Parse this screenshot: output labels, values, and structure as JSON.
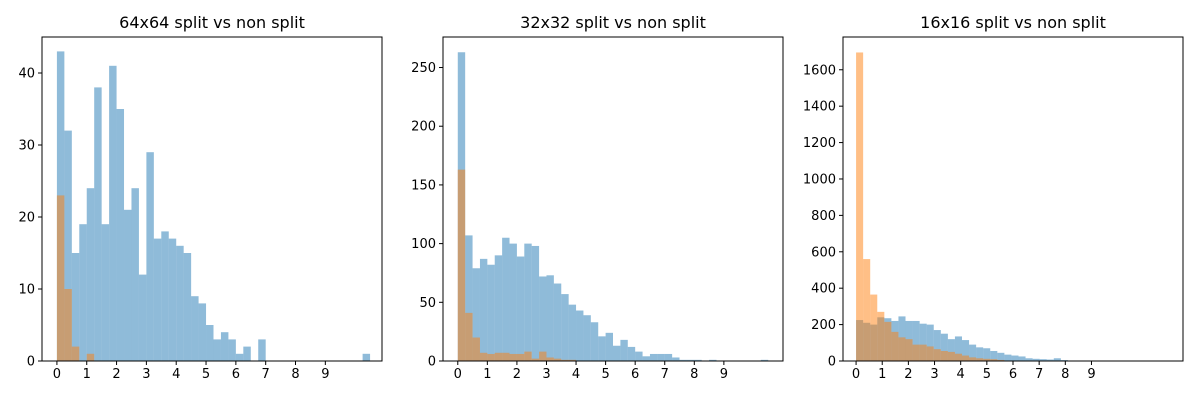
{
  "colors": {
    "series_blue": "#1f77b4",
    "series_orange": "#ff7f0e",
    "opacity": 0.5,
    "axis": "#000000",
    "background": "#ffffff"
  },
  "chart_data": [
    {
      "type": "bar",
      "title": "64x64 split vs non split",
      "xlabel": "",
      "ylabel": "",
      "xlim": [
        -0.5,
        10.9
      ],
      "ylim": [
        0,
        45
      ],
      "xticks": [
        "0",
        "1",
        "2",
        "3",
        "4",
        "5",
        "6",
        "7",
        "8",
        "9"
      ],
      "yticks": [
        "0",
        "10",
        "20",
        "30",
        "40"
      ],
      "grid": false,
      "legend": "none",
      "series": [
        {
          "bin_width": 0.25,
          "bins": [
            [
              0.0,
              43
            ],
            [
              0.25,
              32
            ],
            [
              0.5,
              15
            ],
            [
              0.75,
              19
            ],
            [
              1.0,
              24
            ],
            [
              1.25,
              38
            ],
            [
              1.5,
              19
            ],
            [
              1.75,
              41
            ],
            [
              2.0,
              35
            ],
            [
              2.25,
              21
            ],
            [
              2.5,
              24
            ],
            [
              2.75,
              12
            ],
            [
              3.0,
              29
            ],
            [
              3.25,
              17
            ],
            [
              3.5,
              18
            ],
            [
              3.75,
              17
            ],
            [
              4.0,
              16
            ],
            [
              4.25,
              15
            ],
            [
              4.5,
              9
            ],
            [
              4.75,
              8
            ],
            [
              5.0,
              5
            ],
            [
              5.25,
              3
            ],
            [
              5.5,
              4
            ],
            [
              5.75,
              3
            ],
            [
              6.0,
              1
            ],
            [
              6.25,
              2
            ],
            [
              6.75,
              3
            ],
            [
              10.25,
              1
            ]
          ]
        },
        {
          "bin_width": 0.25,
          "bins": [
            [
              0.0,
              23
            ],
            [
              0.25,
              10
            ],
            [
              0.5,
              2
            ],
            [
              1.0,
              1
            ]
          ]
        }
      ]
    },
    {
      "type": "bar",
      "title": "32x32 split vs non split",
      "xlabel": "",
      "ylabel": "",
      "xlim": [
        -0.5,
        11.0
      ],
      "ylim": [
        0,
        276
      ],
      "xticks": [
        "0",
        "1",
        "2",
        "3",
        "4",
        "5",
        "6",
        "7",
        "8",
        "9"
      ],
      "yticks": [
        "0",
        "50",
        "100",
        "150",
        "200",
        "250"
      ],
      "grid": false,
      "legend": "none",
      "series": [
        {
          "bin_width": 0.25,
          "bins": [
            [
              0.0,
              263
            ],
            [
              0.25,
              107
            ],
            [
              0.5,
              79
            ],
            [
              0.75,
              87
            ],
            [
              1.0,
              82
            ],
            [
              1.25,
              90
            ],
            [
              1.5,
              105
            ],
            [
              1.75,
              100
            ],
            [
              2.0,
              89
            ],
            [
              2.25,
              100
            ],
            [
              2.5,
              98
            ],
            [
              2.75,
              72
            ],
            [
              3.0,
              73
            ],
            [
              3.25,
              66
            ],
            [
              3.5,
              57
            ],
            [
              3.75,
              48
            ],
            [
              4.0,
              43
            ],
            [
              4.25,
              39
            ],
            [
              4.5,
              33
            ],
            [
              4.75,
              21
            ],
            [
              5.0,
              24
            ],
            [
              5.25,
              13
            ],
            [
              5.5,
              18
            ],
            [
              5.75,
              12
            ],
            [
              6.0,
              8
            ],
            [
              6.25,
              4
            ],
            [
              6.5,
              6
            ],
            [
              6.75,
              6
            ],
            [
              7.0,
              6
            ],
            [
              7.25,
              3
            ],
            [
              7.5,
              1
            ],
            [
              7.75,
              1
            ],
            [
              8.0,
              1
            ],
            [
              8.5,
              1
            ],
            [
              10.25,
              1
            ]
          ]
        },
        {
          "bin_width": 0.25,
          "bins": [
            [
              0.0,
              163
            ],
            [
              0.25,
              41
            ],
            [
              0.5,
              20
            ],
            [
              0.75,
              7
            ],
            [
              1.0,
              6
            ],
            [
              1.25,
              7
            ],
            [
              1.5,
              7
            ],
            [
              1.75,
              6
            ],
            [
              2.0,
              6
            ],
            [
              2.25,
              8
            ],
            [
              2.5,
              2
            ],
            [
              2.75,
              8
            ],
            [
              3.0,
              3
            ],
            [
              3.25,
              2
            ],
            [
              3.5,
              1
            ],
            [
              3.75,
              1
            ]
          ]
        }
      ]
    },
    {
      "type": "bar",
      "title": "16x16 split vs non split",
      "xlabel": "",
      "ylabel": "",
      "xlim": [
        -0.5,
        12.5
      ],
      "ylim": [
        0,
        1780
      ],
      "xticks": [
        "0",
        "1",
        "2",
        "3",
        "4",
        "5",
        "6",
        "7",
        "8",
        "9"
      ],
      "yticks": [
        "0",
        "200",
        "400",
        "600",
        "800",
        "1000",
        "1200",
        "1400",
        "1600"
      ],
      "grid": false,
      "legend": "none",
      "series": [
        {
          "bin_width": 0.27,
          "bins": [
            [
              0.0,
              225
            ],
            [
              0.27,
              210
            ],
            [
              0.54,
              200
            ],
            [
              0.81,
              240
            ],
            [
              1.08,
              235
            ],
            [
              1.35,
              220
            ],
            [
              1.62,
              245
            ],
            [
              1.89,
              220
            ],
            [
              2.16,
              220
            ],
            [
              2.43,
              205
            ],
            [
              2.7,
              200
            ],
            [
              2.97,
              170
            ],
            [
              3.24,
              150
            ],
            [
              3.51,
              120
            ],
            [
              3.78,
              135
            ],
            [
              4.05,
              115
            ],
            [
              4.32,
              90
            ],
            [
              4.59,
              75
            ],
            [
              4.86,
              70
            ],
            [
              5.13,
              55
            ],
            [
              5.4,
              45
            ],
            [
              5.67,
              35
            ],
            [
              5.94,
              30
            ],
            [
              6.21,
              25
            ],
            [
              6.48,
              15
            ],
            [
              6.75,
              12
            ],
            [
              7.02,
              10
            ],
            [
              7.29,
              8
            ],
            [
              7.56,
              15
            ],
            [
              7.83,
              5
            ]
          ]
        },
        {
          "bin_width": 0.27,
          "bins": [
            [
              0.0,
              1695
            ],
            [
              0.27,
              560
            ],
            [
              0.54,
              365
            ],
            [
              0.81,
              270
            ],
            [
              1.08,
              215
            ],
            [
              1.35,
              160
            ],
            [
              1.62,
              130
            ],
            [
              1.89,
              120
            ],
            [
              2.16,
              90
            ],
            [
              2.43,
              90
            ],
            [
              2.7,
              80
            ],
            [
              2.97,
              65
            ],
            [
              3.24,
              55
            ],
            [
              3.51,
              50
            ],
            [
              3.78,
              40
            ],
            [
              4.05,
              30
            ],
            [
              4.32,
              20
            ],
            [
              4.59,
              15
            ],
            [
              4.86,
              12
            ],
            [
              5.13,
              10
            ],
            [
              5.4,
              6
            ]
          ]
        }
      ]
    }
  ]
}
